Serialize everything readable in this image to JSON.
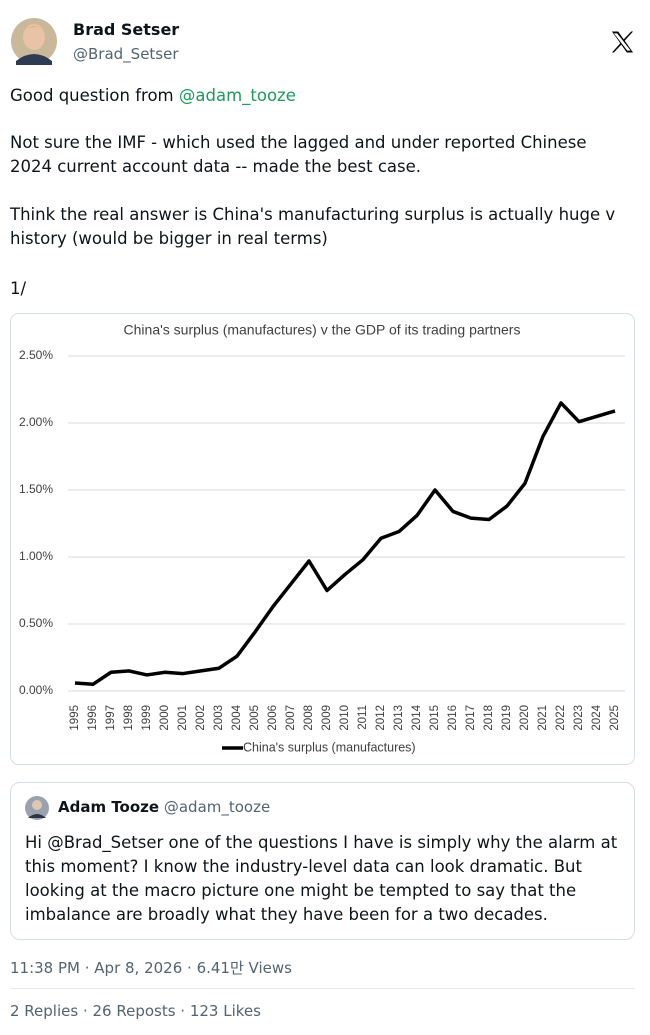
{
  "author": {
    "name": "Brad Setser",
    "handle": "@Brad_Setser"
  },
  "body": {
    "p1": "Good question from ",
    "p1_mention": "@adam_tooze",
    "p2": "Not sure the IMF - which used the lagged and under reported Chinese 2024 current account data -- made the best case.",
    "p3": "Think the real answer is China's manufacturing surplus is actually huge v history (would be bigger in real terms)",
    "p4": "1/"
  },
  "chart_data": {
    "type": "line",
    "title": "China's surplus (manufactures) v the GDP of its trading partners",
    "categories": [
      "1995",
      "1996",
      "1997",
      "1998",
      "1999",
      "2000",
      "2001",
      "2002",
      "2003",
      "2004",
      "2005",
      "2006",
      "2007",
      "2008",
      "2009",
      "2010",
      "2011",
      "2012",
      "2013",
      "2014",
      "2015",
      "2016",
      "2017",
      "2018",
      "2019",
      "2020",
      "2021",
      "2022",
      "2023",
      "2024",
      "2025"
    ],
    "series": [
      {
        "name": "China's surplus (manufactures)",
        "color": "#000000",
        "values": [
          0.06,
          0.05,
          0.14,
          0.15,
          0.12,
          0.14,
          0.13,
          0.15,
          0.17,
          0.26,
          0.44,
          0.63,
          0.8,
          0.97,
          0.75,
          0.87,
          0.98,
          1.14,
          1.19,
          1.31,
          1.5,
          1.34,
          1.29,
          1.28,
          1.38,
          1.55,
          1.9,
          2.15,
          2.01,
          2.05,
          2.09
        ]
      }
    ],
    "ylim": [
      0,
      2.5
    ],
    "yticks": [
      {
        "value": 0,
        "label": "0.00%"
      },
      {
        "value": 0.5,
        "label": "0.50%"
      },
      {
        "value": 1,
        "label": "1.00%"
      },
      {
        "value": 1.5,
        "label": "1.50%"
      },
      {
        "value": 2,
        "label": "2.00%"
      },
      {
        "value": 2.5,
        "label": "2.50%"
      }
    ],
    "grid": true,
    "legend": "bottom"
  },
  "quote": {
    "name": "Adam Tooze",
    "handle": "@adam_tooze",
    "text": "Hi @Brad_Setser one of the questions I have is simply why the alarm at this moment? I know the industry-level data can look dramatic. But looking at the macro picture one might be tempted to say that the imbalance are broadly what they have been for a two decades."
  },
  "footer": {
    "timestamp": "11:38 PM · Apr 8, 2026 · 6.41만 Views",
    "stats": "2 Replies · 26 Reposts · 123 Likes"
  }
}
